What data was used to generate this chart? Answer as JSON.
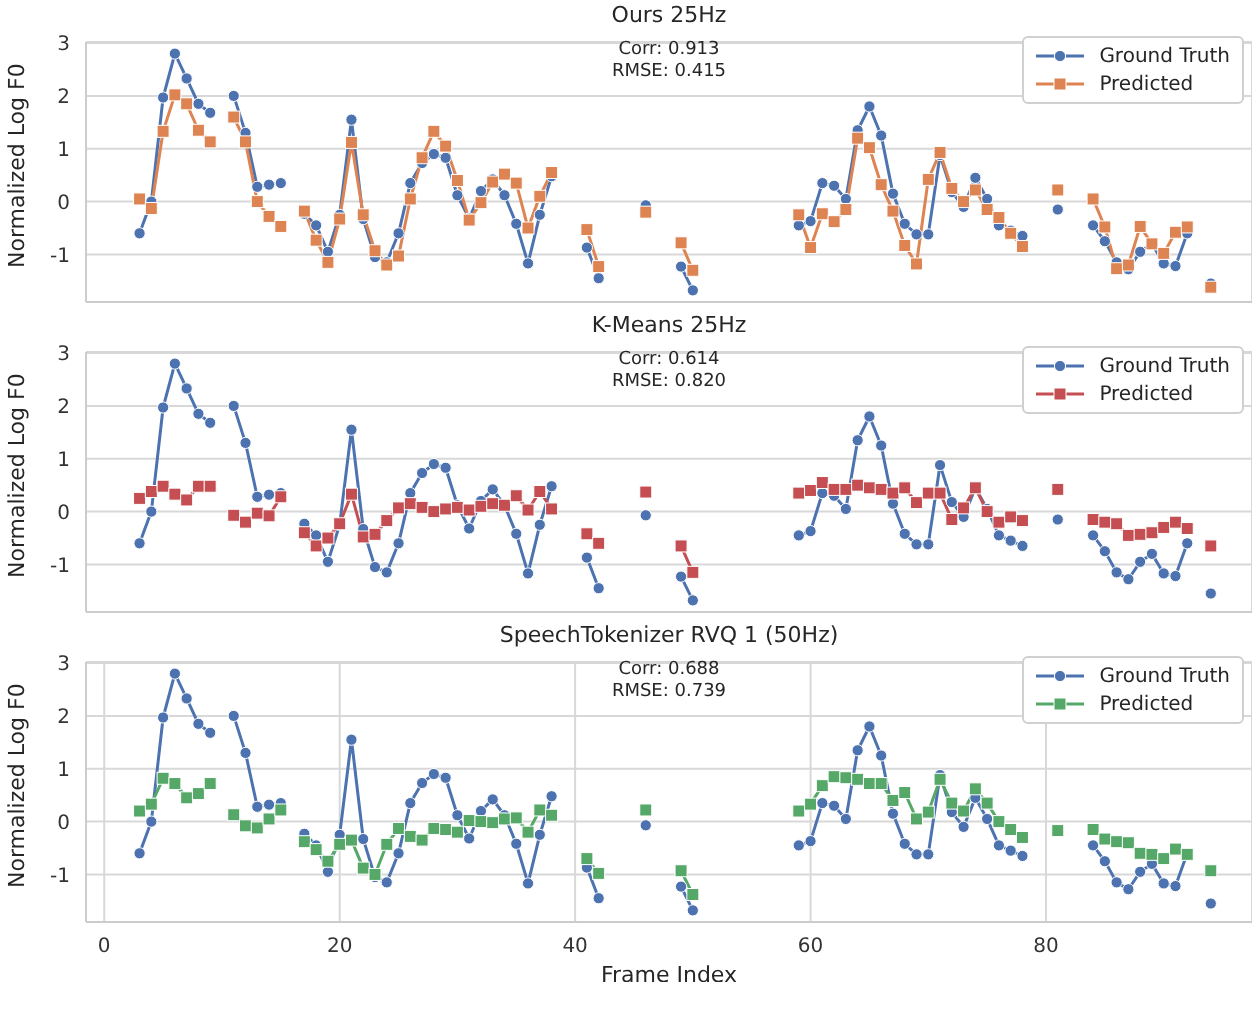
{
  "chart_data": [
    {
      "type": "line",
      "title": "Ours 25Hz",
      "ylabel": "Normalized Log F0",
      "annotations": [
        "Corr: 0.913\nRMSE: 0.415"
      ],
      "tick_labels": "y",
      "grid": true,
      "legend": "top right",
      "xlim": [
        -1.55,
        97.5
      ],
      "xticks": [
        0,
        20,
        40,
        60,
        80
      ],
      "ylim": [
        -1.9,
        3.02
      ],
      "yticks": [
        -1,
        0,
        1,
        2,
        3
      ],
      "x": [
        3,
        4,
        5,
        6,
        7,
        8,
        9,
        10,
        11,
        12,
        13,
        14,
        15,
        16,
        17,
        18,
        19,
        20,
        21,
        22,
        23,
        24,
        25,
        26,
        27,
        28,
        29,
        30,
        31,
        32,
        33,
        34,
        35,
        36,
        37,
        38,
        39,
        41,
        42,
        43,
        46,
        47,
        49,
        50,
        51,
        59,
        60,
        61,
        62,
        63,
        64,
        65,
        66,
        67,
        68,
        69,
        70,
        71,
        72,
        73,
        74,
        75,
        76,
        77,
        78,
        79,
        81,
        82,
        84,
        85,
        86,
        87,
        88,
        89,
        90,
        91,
        92,
        93,
        94
      ],
      "series": [
        {
          "name": "Ground Truth",
          "color": "#4c72b0",
          "marker": "circle",
          "values": [
            -0.6,
            0.0,
            1.97,
            2.8,
            2.33,
            1.85,
            1.68,
            null,
            2.0,
            1.3,
            0.28,
            0.32,
            0.35,
            null,
            -0.23,
            -0.45,
            -0.95,
            -0.25,
            1.55,
            -0.33,
            -1.05,
            -1.15,
            -0.6,
            0.35,
            0.73,
            0.9,
            0.83,
            0.12,
            -0.32,
            0.2,
            0.42,
            0.12,
            -0.42,
            -1.17,
            -0.25,
            0.48,
            null,
            -0.87,
            -1.45,
            null,
            -0.07,
            null,
            -1.23,
            -1.68,
            null,
            -0.45,
            -0.37,
            0.35,
            0.3,
            0.05,
            1.35,
            1.8,
            1.25,
            0.15,
            -0.42,
            -0.62,
            -0.62,
            0.88,
            0.18,
            -0.1,
            0.45,
            0.05,
            -0.45,
            -0.55,
            -0.65,
            null,
            -0.15,
            null,
            -0.45,
            -0.75,
            -1.15,
            -1.28,
            -0.95,
            -0.8,
            -1.17,
            -1.22,
            -0.6,
            null,
            -1.55
          ]
        },
        {
          "name": "Predicted",
          "color": "#dd8452",
          "marker": "square",
          "values": [
            0.05,
            -0.13,
            1.33,
            2.02,
            1.85,
            1.35,
            1.13,
            null,
            1.6,
            1.13,
            0.0,
            -0.28,
            -0.47,
            null,
            -0.18,
            -0.73,
            -1.15,
            -0.33,
            1.12,
            -0.25,
            -0.93,
            -1.2,
            -1.03,
            0.05,
            0.83,
            1.33,
            1.05,
            0.4,
            -0.35,
            -0.02,
            0.37,
            0.52,
            0.35,
            -0.5,
            0.1,
            0.55,
            null,
            -0.53,
            -1.23,
            null,
            -0.2,
            null,
            -0.78,
            -1.3,
            null,
            -0.25,
            -0.87,
            -0.23,
            -0.38,
            -0.15,
            1.2,
            1.02,
            0.32,
            -0.18,
            -0.83,
            -1.18,
            0.42,
            0.93,
            0.25,
            0.0,
            0.22,
            -0.15,
            -0.3,
            -0.6,
            -0.85,
            null,
            0.22,
            null,
            0.05,
            -0.48,
            -1.27,
            -1.2,
            -0.47,
            -0.8,
            -0.98,
            -0.58,
            -0.48,
            null,
            -1.62
          ]
        }
      ]
    },
    {
      "type": "line",
      "title": "K-Means 25Hz",
      "ylabel": "Normalized Log F0",
      "annotations": [
        "Corr: 0.614\nRMSE: 0.820"
      ],
      "tick_labels": "y",
      "grid": true,
      "legend": "top right",
      "xlim": [
        -1.55,
        97.5
      ],
      "xticks": [
        0,
        20,
        40,
        60,
        80
      ],
      "ylim": [
        -1.9,
        3.02
      ],
      "yticks": [
        -1,
        0,
        1,
        2,
        3
      ],
      "x": [
        3,
        4,
        5,
        6,
        7,
        8,
        9,
        10,
        11,
        12,
        13,
        14,
        15,
        16,
        17,
        18,
        19,
        20,
        21,
        22,
        23,
        24,
        25,
        26,
        27,
        28,
        29,
        30,
        31,
        32,
        33,
        34,
        35,
        36,
        37,
        38,
        39,
        41,
        42,
        43,
        46,
        47,
        49,
        50,
        51,
        59,
        60,
        61,
        62,
        63,
        64,
        65,
        66,
        67,
        68,
        69,
        70,
        71,
        72,
        73,
        74,
        75,
        76,
        77,
        78,
        79,
        81,
        82,
        84,
        85,
        86,
        87,
        88,
        89,
        90,
        91,
        92,
        93,
        94
      ],
      "series": [
        {
          "name": "Ground Truth",
          "color": "#4c72b0",
          "marker": "circle",
          "values": [
            -0.6,
            0.0,
            1.97,
            2.8,
            2.33,
            1.85,
            1.68,
            null,
            2.0,
            1.3,
            0.28,
            0.32,
            0.35,
            null,
            -0.23,
            -0.45,
            -0.95,
            -0.25,
            1.55,
            -0.33,
            -1.05,
            -1.15,
            -0.6,
            0.35,
            0.73,
            0.9,
            0.83,
            0.12,
            -0.32,
            0.2,
            0.42,
            0.12,
            -0.42,
            -1.17,
            -0.25,
            0.48,
            null,
            -0.87,
            -1.45,
            null,
            -0.07,
            null,
            -1.23,
            -1.68,
            null,
            -0.45,
            -0.37,
            0.35,
            0.3,
            0.05,
            1.35,
            1.8,
            1.25,
            0.15,
            -0.42,
            -0.62,
            -0.62,
            0.88,
            0.18,
            -0.1,
            0.45,
            0.05,
            -0.45,
            -0.55,
            -0.65,
            null,
            -0.15,
            null,
            -0.45,
            -0.75,
            -1.15,
            -1.28,
            -0.95,
            -0.8,
            -1.17,
            -1.22,
            -0.6,
            null,
            -1.55
          ]
        },
        {
          "name": "Predicted",
          "color": "#c44e52",
          "marker": "square",
          "values": [
            0.25,
            0.38,
            0.48,
            0.33,
            0.22,
            0.48,
            0.48,
            null,
            -0.07,
            -0.2,
            -0.03,
            -0.08,
            0.28,
            null,
            -0.4,
            -0.65,
            -0.5,
            -0.23,
            0.33,
            -0.48,
            -0.43,
            -0.17,
            0.07,
            0.15,
            0.08,
            0.0,
            0.05,
            0.08,
            0.03,
            0.1,
            0.15,
            0.12,
            0.3,
            0.03,
            0.38,
            0.05,
            null,
            -0.42,
            -0.6,
            null,
            0.37,
            null,
            -0.65,
            -1.15,
            null,
            0.35,
            0.4,
            0.55,
            0.42,
            0.42,
            0.5,
            0.45,
            0.42,
            0.35,
            0.45,
            0.17,
            0.35,
            0.35,
            -0.15,
            0.07,
            0.45,
            0.0,
            -0.2,
            -0.1,
            -0.17,
            null,
            0.42,
            null,
            -0.15,
            -0.2,
            -0.23,
            -0.45,
            -0.43,
            -0.4,
            -0.3,
            -0.2,
            -0.32,
            null,
            -0.65
          ]
        }
      ]
    },
    {
      "type": "line",
      "title": "SpeechTokenizer RVQ 1 (50Hz)",
      "xlabel": "Frame Index",
      "ylabel": "Normalized Log F0",
      "annotations": [
        "Corr: 0.688\nRMSE: 0.739"
      ],
      "grid": true,
      "legend": "top right",
      "xlim": [
        -1.55,
        97.5
      ],
      "xticks": [
        0,
        20,
        40,
        60,
        80
      ],
      "ylim": [
        -1.9,
        3.02
      ],
      "yticks": [
        -1,
        0,
        1,
        2,
        3
      ],
      "x": [
        3,
        4,
        5,
        6,
        7,
        8,
        9,
        10,
        11,
        12,
        13,
        14,
        15,
        16,
        17,
        18,
        19,
        20,
        21,
        22,
        23,
        24,
        25,
        26,
        27,
        28,
        29,
        30,
        31,
        32,
        33,
        34,
        35,
        36,
        37,
        38,
        39,
        41,
        42,
        43,
        46,
        47,
        49,
        50,
        51,
        59,
        60,
        61,
        62,
        63,
        64,
        65,
        66,
        67,
        68,
        69,
        70,
        71,
        72,
        73,
        74,
        75,
        76,
        77,
        78,
        79,
        81,
        82,
        84,
        85,
        86,
        87,
        88,
        89,
        90,
        91,
        92,
        93,
        94
      ],
      "series": [
        {
          "name": "Ground Truth",
          "color": "#4c72b0",
          "marker": "circle",
          "values": [
            -0.6,
            0.0,
            1.97,
            2.8,
            2.33,
            1.85,
            1.68,
            null,
            2.0,
            1.3,
            0.28,
            0.32,
            0.35,
            null,
            -0.23,
            -0.45,
            -0.95,
            -0.25,
            1.55,
            -0.33,
            -1.05,
            -1.15,
            -0.6,
            0.35,
            0.73,
            0.9,
            0.83,
            0.12,
            -0.32,
            0.2,
            0.42,
            0.12,
            -0.42,
            -1.17,
            -0.25,
            0.48,
            null,
            -0.87,
            -1.45,
            null,
            -0.07,
            null,
            -1.23,
            -1.68,
            null,
            -0.45,
            -0.37,
            0.35,
            0.3,
            0.05,
            1.35,
            1.8,
            1.25,
            0.15,
            -0.42,
            -0.62,
            -0.62,
            0.88,
            0.18,
            -0.1,
            0.45,
            0.05,
            -0.45,
            -0.55,
            -0.65,
            null,
            null,
            null,
            -0.45,
            -0.75,
            -1.15,
            -1.28,
            -0.95,
            -0.8,
            -1.17,
            -1.22,
            -0.6,
            null,
            -1.55
          ]
        },
        {
          "name": "Predicted",
          "color": "#55a868",
          "marker": "square",
          "values": [
            0.2,
            0.33,
            0.82,
            0.72,
            0.45,
            0.53,
            0.72,
            null,
            0.13,
            -0.08,
            -0.12,
            0.05,
            0.22,
            null,
            -0.38,
            -0.53,
            -0.75,
            -0.43,
            -0.35,
            -0.88,
            -1.0,
            -0.43,
            -0.13,
            -0.28,
            -0.35,
            -0.13,
            -0.15,
            -0.2,
            0.02,
            0.0,
            -0.02,
            0.05,
            0.07,
            -0.2,
            0.22,
            0.12,
            null,
            -0.7,
            -0.98,
            null,
            0.22,
            null,
            -0.93,
            -1.38,
            null,
            0.2,
            0.33,
            0.68,
            0.85,
            0.83,
            0.8,
            0.72,
            0.72,
            0.4,
            0.55,
            0.05,
            0.18,
            0.8,
            0.35,
            0.2,
            0.62,
            0.35,
            0.0,
            -0.15,
            -0.3,
            null,
            -0.17,
            null,
            -0.15,
            -0.33,
            -0.38,
            -0.4,
            -0.6,
            -0.62,
            -0.7,
            -0.52,
            -0.62,
            null,
            -0.93
          ]
        }
      ]
    }
  ]
}
